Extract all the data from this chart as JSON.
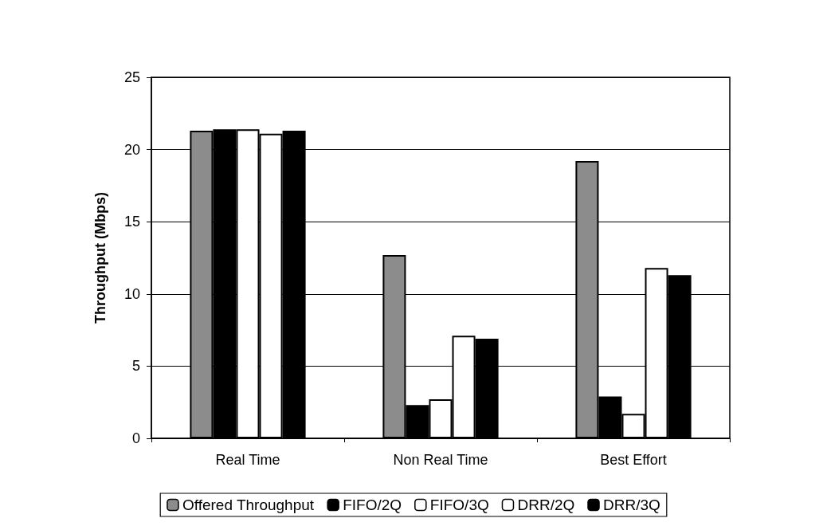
{
  "chart_data": {
    "type": "bar",
    "ylabel": "Throughput (Mbps)",
    "categories": [
      "Real Time",
      "Non Real Time",
      "Best Effort"
    ],
    "series": [
      {
        "name": "Offered Throughput",
        "color": "#8c8c8c",
        "values": [
          21.3,
          12.7,
          19.2
        ]
      },
      {
        "name": "FIFO/2Q",
        "color": "#000000",
        "values": [
          21.4,
          2.3,
          2.9
        ]
      },
      {
        "name": "FIFO/3Q",
        "color": "#ffffff",
        "values": [
          21.4,
          2.7,
          1.7
        ]
      },
      {
        "name": "DRR/2Q",
        "color": "#ffffff",
        "values": [
          21.1,
          7.1,
          11.8
        ]
      },
      {
        "name": "DRR/3Q",
        "color": "#000000",
        "values": [
          21.3,
          6.9,
          11.3
        ]
      }
    ],
    "ylim": [
      0,
      25
    ],
    "yticks": [
      0,
      5,
      10,
      15,
      20,
      25
    ],
    "grid": "y",
    "legend": "bottom"
  }
}
